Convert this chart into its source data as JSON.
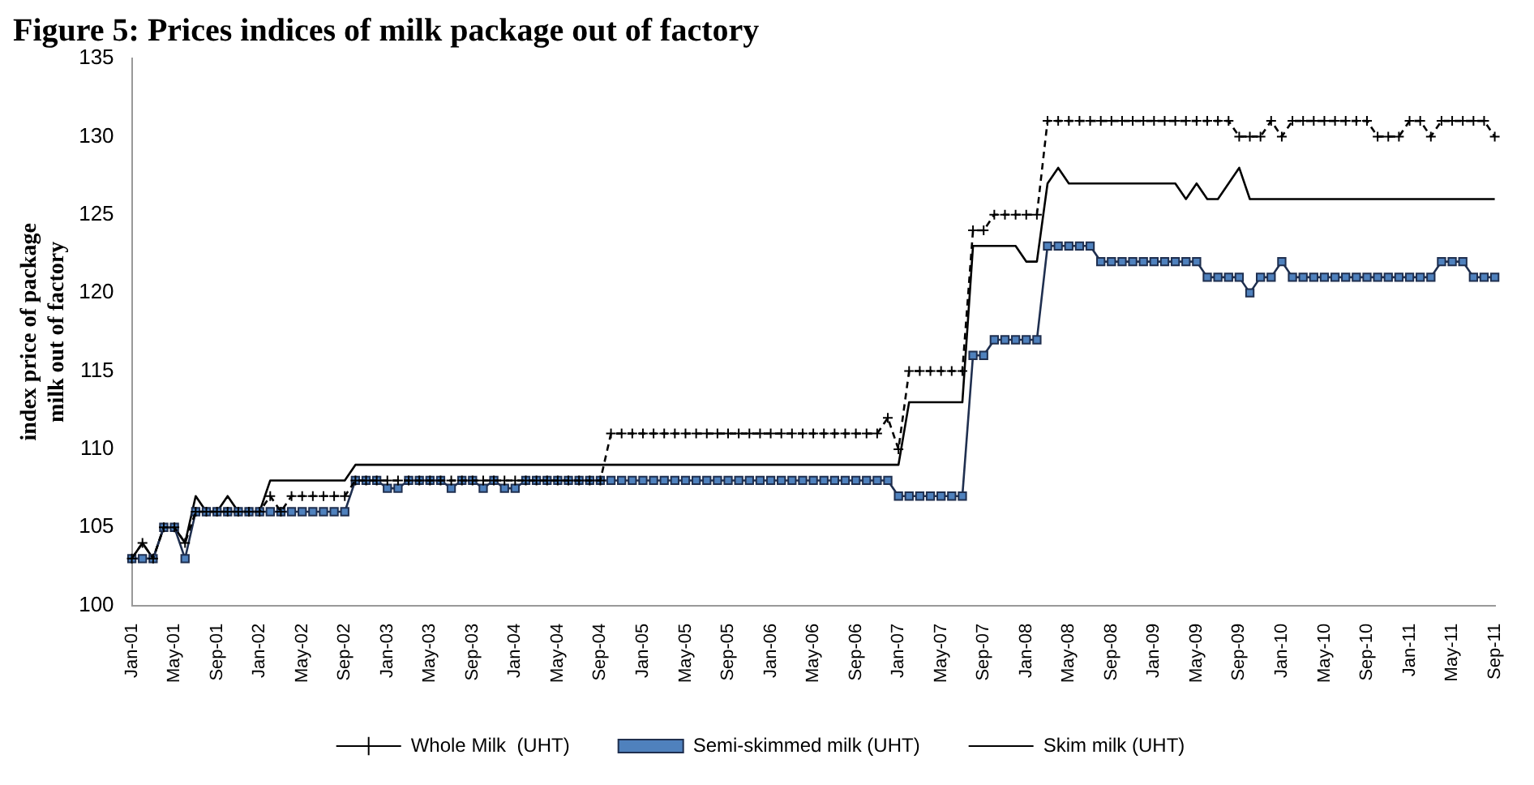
{
  "chart_data": {
    "type": "line",
    "title": "Figure 5: Prices indices of milk package out of factory",
    "ylabel": "index price of package milk out of factory",
    "categories": [
      "Jan-01",
      null,
      null,
      null,
      "May-01",
      null,
      null,
      null,
      "Sep-01",
      null,
      null,
      null,
      "Jan-02",
      null,
      null,
      null,
      "May-02",
      null,
      null,
      null,
      "Sep-02",
      null,
      null,
      null,
      "Jan-03",
      null,
      null,
      null,
      "May-03",
      null,
      null,
      null,
      "Sep-03",
      null,
      null,
      null,
      "Jan-04",
      null,
      null,
      null,
      "May-04",
      null,
      null,
      null,
      "Sep-04",
      null,
      null,
      null,
      "Jan-05",
      null,
      null,
      null,
      "May-05",
      null,
      null,
      null,
      "Sep-05",
      null,
      null,
      null,
      "Jan-06",
      null,
      null,
      null,
      "May-06",
      null,
      null,
      null,
      "Sep-06",
      null,
      null,
      null,
      "Jan-07",
      null,
      null,
      null,
      "May-07",
      null,
      null,
      null,
      "Sep-07",
      null,
      null,
      null,
      "Jan-08",
      null,
      null,
      null,
      "May-08",
      null,
      null,
      null,
      "Sep-08",
      null,
      null,
      null,
      "Jan-09",
      null,
      null,
      null,
      "May-09",
      null,
      null,
      null,
      "Sep-09",
      null,
      null,
      null,
      "Jan-10",
      null,
      null,
      null,
      "May-10",
      null,
      null,
      null,
      "Sep-10",
      null,
      null,
      null,
      "Jan-11",
      null,
      null,
      null,
      "May-11",
      null,
      null,
      null,
      "Sep-11"
    ],
    "series": [
      {
        "name": "Whole Milk  (UHT)",
        "color": "#000000",
        "marker": "cross",
        "line_style": "dashed",
        "values": [
          103,
          104,
          103,
          105,
          105,
          104,
          106,
          106,
          106,
          106,
          106,
          106,
          106,
          107,
          106,
          107,
          107,
          107,
          107,
          107,
          107,
          108,
          108,
          108,
          108,
          108,
          108,
          108,
          108,
          108,
          108,
          108,
          108,
          108,
          108,
          108,
          108,
          108,
          108,
          108,
          108,
          108,
          108,
          108,
          108,
          111,
          111,
          111,
          111,
          111,
          111,
          111,
          111,
          111,
          111,
          111,
          111,
          111,
          111,
          111,
          111,
          111,
          111,
          111,
          111,
          111,
          111,
          111,
          111,
          111,
          111,
          112,
          110,
          115,
          115,
          115,
          115,
          115,
          115,
          124,
          124,
          125,
          125,
          125,
          125,
          125,
          131,
          131,
          131,
          131,
          131,
          131,
          131,
          131,
          131,
          131,
          131,
          131,
          131,
          131,
          131,
          131,
          131,
          131,
          130,
          130,
          130,
          131,
          130,
          131,
          131,
          131,
          131,
          131,
          131,
          131,
          131,
          130,
          130,
          130,
          131,
          131,
          130,
          131,
          131,
          131,
          131,
          131,
          130
        ]
      },
      {
        "name": "Semi-skimmed milk (UHT)",
        "color": "#4f81bd",
        "marker": "square",
        "line_style": "solid",
        "values": [
          103,
          103,
          103,
          105,
          105,
          103,
          106,
          106,
          106,
          106,
          106,
          106,
          106,
          106,
          106,
          106,
          106,
          106,
          106,
          106,
          106,
          108,
          108,
          108,
          107.5,
          107.5,
          108,
          108,
          108,
          108,
          107.5,
          108,
          108,
          107.5,
          108,
          107.5,
          107.5,
          108,
          108,
          108,
          108,
          108,
          108,
          108,
          108,
          108,
          108,
          108,
          108,
          108,
          108,
          108,
          108,
          108,
          108,
          108,
          108,
          108,
          108,
          108,
          108,
          108,
          108,
          108,
          108,
          108,
          108,
          108,
          108,
          108,
          108,
          108,
          107,
          107,
          107,
          107,
          107,
          107,
          107,
          116,
          116,
          117,
          117,
          117,
          117,
          117,
          123,
          123,
          123,
          123,
          123,
          122,
          122,
          122,
          122,
          122,
          122,
          122,
          122,
          122,
          122,
          121,
          121,
          121,
          121,
          120,
          121,
          121,
          122,
          121,
          121,
          121,
          121,
          121,
          121,
          121,
          121,
          121,
          121,
          121,
          121,
          121,
          121,
          122,
          122,
          122,
          121,
          121,
          121
        ]
      },
      {
        "name": "Skim milk (UHT)",
        "color": "#000000",
        "marker": "none",
        "line_style": "solid",
        "values": [
          103,
          104,
          103,
          105,
          105,
          104,
          107,
          106,
          106,
          107,
          106,
          106,
          106,
          108,
          108,
          108,
          108,
          108,
          108,
          108,
          108,
          109,
          109,
          109,
          109,
          109,
          109,
          109,
          109,
          109,
          109,
          109,
          109,
          109,
          109,
          109,
          109,
          109,
          109,
          109,
          109,
          109,
          109,
          109,
          109,
          109,
          109,
          109,
          109,
          109,
          109,
          109,
          109,
          109,
          109,
          109,
          109,
          109,
          109,
          109,
          109,
          109,
          109,
          109,
          109,
          109,
          109,
          109,
          109,
          109,
          109,
          109,
          109,
          113,
          113,
          113,
          113,
          113,
          113,
          123,
          123,
          123,
          123,
          123,
          122,
          122,
          127,
          128,
          127,
          127,
          127,
          127,
          127,
          127,
          127,
          127,
          127,
          127,
          127,
          126,
          127,
          126,
          126,
          127,
          128,
          126,
          126,
          126,
          126,
          126,
          126,
          126,
          126,
          126,
          126,
          126,
          126,
          126,
          126,
          126,
          126,
          126,
          126,
          126,
          126,
          126,
          126,
          126,
          126
        ]
      }
    ],
    "ylim": [
      100,
      135
    ],
    "yticks": [
      100,
      105,
      110,
      115,
      120,
      125,
      130,
      135
    ],
    "legend": "bottom"
  }
}
